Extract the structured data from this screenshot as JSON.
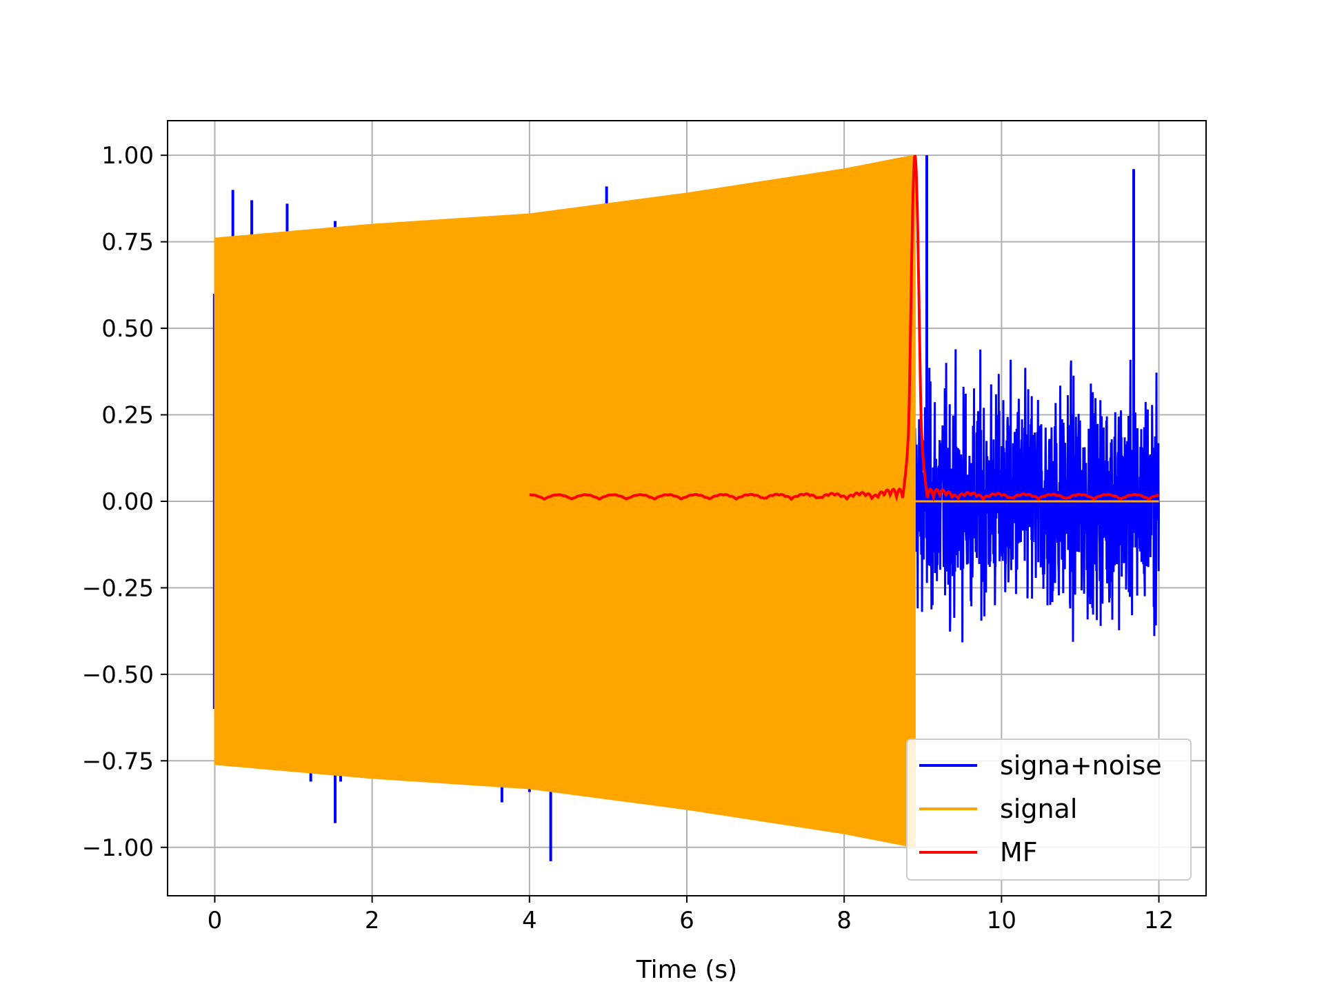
{
  "chart_data": {
    "type": "line",
    "title": "",
    "xlabel": "Time (s)",
    "ylabel": "",
    "xlim": [
      -0.6,
      12.6
    ],
    "ylim": [
      -1.14,
      1.1
    ],
    "xticks": [
      0,
      2,
      4,
      6,
      8,
      10,
      12
    ],
    "xtick_labels": [
      "0",
      "2",
      "4",
      "6",
      "8",
      "10",
      "12"
    ],
    "yticks": [
      1.0,
      0.75,
      0.5,
      0.25,
      0.0,
      -0.25,
      -0.5,
      -0.75,
      -1.0
    ],
    "ytick_labels": [
      "1.00",
      "0.75",
      "0.50",
      "0.25",
      "0.00",
      "−0.25",
      "−0.50",
      "−0.75",
      "−1.00"
    ],
    "grid": true,
    "legend_position": "lower-right",
    "series": [
      {
        "name": "signa+noise",
        "color": "#0000ff",
        "t_start": 0,
        "t_end": 12,
        "noise_region": [
          8.9,
          12
        ],
        "noise_amplitude": 0.6,
        "spikes": [
          {
            "x": 0.23,
            "y": 0.9
          },
          {
            "x": 0.47,
            "y": 0.87
          },
          {
            "x": 0.92,
            "y": 0.86
          },
          {
            "x": 1.53,
            "y": 0.81
          },
          {
            "x": 4.98,
            "y": 0.91
          },
          {
            "x": 9.05,
            "y": 1.0
          },
          {
            "x": 11.68,
            "y": 0.96
          },
          {
            "x": 1.22,
            "y": -0.81
          },
          {
            "x": 1.53,
            "y": -0.93
          },
          {
            "x": 1.6,
            "y": -0.81
          },
          {
            "x": 3.65,
            "y": -0.87
          },
          {
            "x": 4.0,
            "y": -0.84
          },
          {
            "x": 4.27,
            "y": -1.04
          }
        ]
      },
      {
        "name": "signal",
        "color": "#ffa500",
        "t_start": 0,
        "t_end": 8.9,
        "envelope": [
          {
            "x": 0.0,
            "y": 0.76
          },
          {
            "x": 2.0,
            "y": 0.8
          },
          {
            "x": 4.0,
            "y": 0.83
          },
          {
            "x": 6.0,
            "y": 0.89
          },
          {
            "x": 8.0,
            "y": 0.96
          },
          {
            "x": 8.9,
            "y": 1.0
          }
        ],
        "zero_line": [
          8.9,
          12
        ]
      },
      {
        "name": "MF",
        "color": "#ff0000",
        "t_start": 4,
        "t_end": 12,
        "peak": {
          "x": 8.9,
          "y": 1.0
        },
        "baseline": 0.015
      }
    ]
  }
}
